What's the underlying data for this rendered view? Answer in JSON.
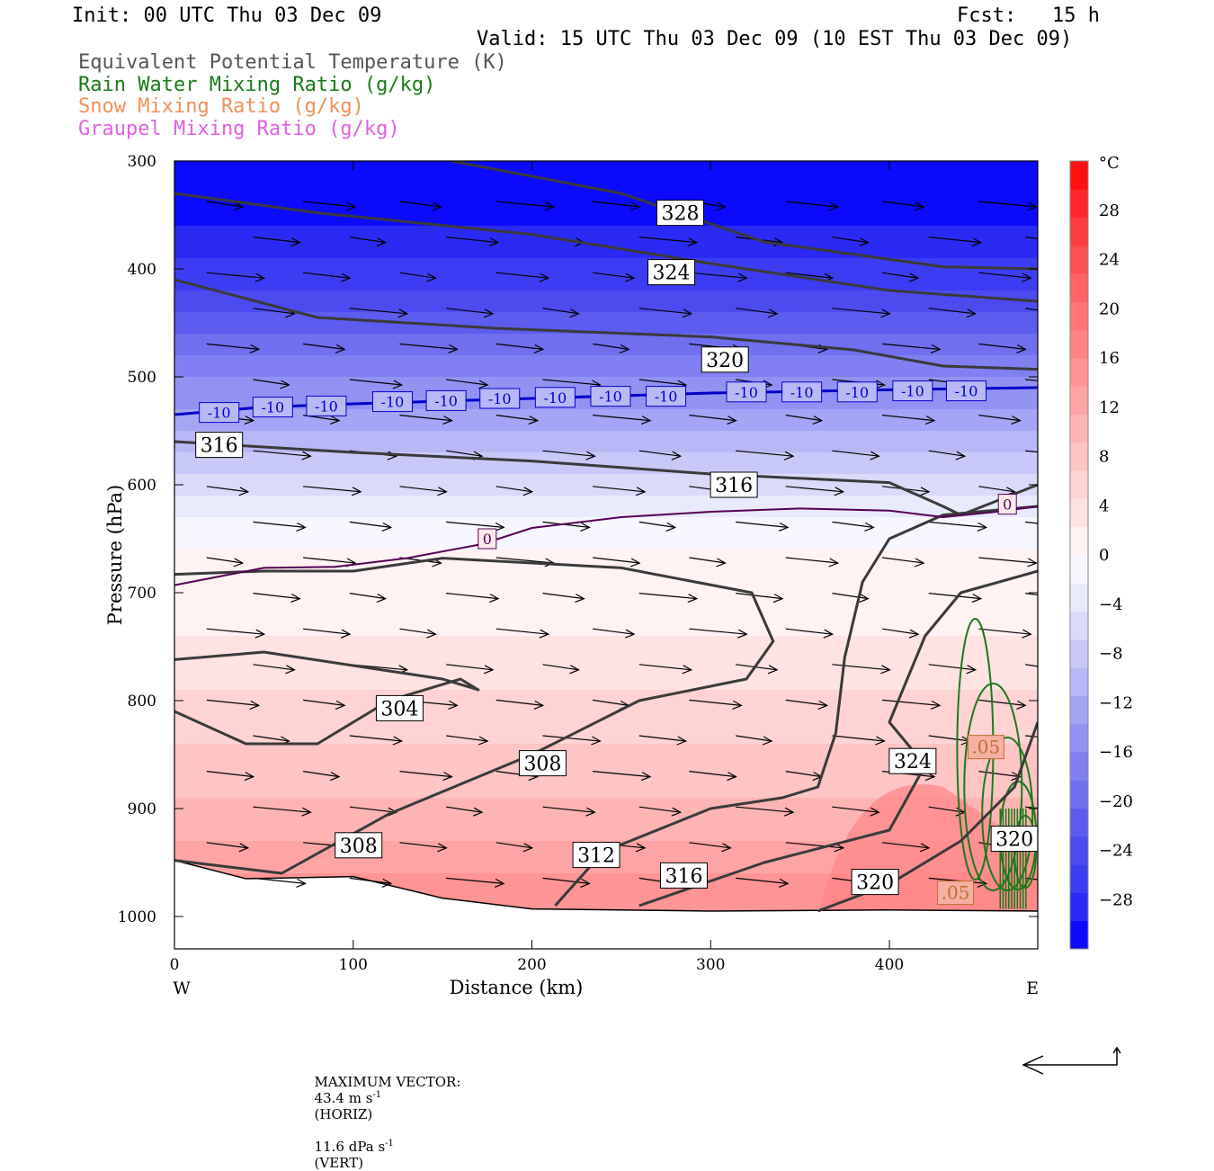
{
  "header": {
    "init": "Init: 00 UTC Thu 03 Dec 09",
    "fcst": "Fcst:   15 h",
    "valid": "Valid: 15 UTC Thu 03 Dec 09 (10 EST Thu 03 Dec 09)",
    "fields": [
      {
        "label": "Equivalent Potential Temperature (K)",
        "color": "#555555"
      },
      {
        "label": "Rain Water Mixing Ratio (g/kg)",
        "color": "#1a7a1a"
      },
      {
        "label": "Snow Mixing Ratio (g/kg)",
        "color": "#f0905a"
      },
      {
        "label": "Graupel Mixing Ratio (g/kg)",
        "color": "#e060e0"
      }
    ]
  },
  "footer": {
    "vector_label": "MAXIMUM VECTOR:",
    "horiz_value": "43.4 m s",
    "horiz_exp": "-1",
    "horiz_unit": "(HORIZ)",
    "vert_value": "11.6 dPa s",
    "vert_exp": "-1",
    "vert_unit": "(VERT)"
  },
  "chart_data": {
    "type": "cross-section",
    "xlabel": "Distance (km)",
    "ylabel": "Pressure (hPa)",
    "xlim": [
      0,
      483
    ],
    "ylim": [
      300,
      1030
    ],
    "y_scale": "linear (pressure, inverted)",
    "x_ticks": [
      0,
      100,
      200,
      300,
      400
    ],
    "y_ticks": [
      300,
      400,
      500,
      600,
      700,
      800,
      900,
      1000
    ],
    "x_end_labels": {
      "left": "W",
      "right": "E"
    },
    "colorbar": {
      "unit": "°C",
      "ticks": [
        28,
        24,
        20,
        16,
        12,
        8,
        4,
        0,
        -4,
        -8,
        -12,
        -16,
        -20,
        -24,
        -28
      ],
      "range": [
        -32,
        32
      ],
      "colors_cold_to_warm": [
        "#0a0aff",
        "#2a2af5",
        "#3c3cf2",
        "#4b4bf0",
        "#5c5cf0",
        "#6f6ff0",
        "#8080f2",
        "#9292f3",
        "#a5a5f5",
        "#b8b8f7",
        "#c9c9f9",
        "#dadafb",
        "#eaeafd",
        "#f6f6ff",
        "#fff2f2",
        "#ffe2e2",
        "#ffd3d3",
        "#ffc4c4",
        "#ffb4b4",
        "#ffa4a4",
        "#ff9494",
        "#ff8484",
        "#ff7474",
        "#ff6464",
        "#ff5050",
        "#ff3c3c",
        "#ff2828",
        "#ff1010"
      ]
    },
    "temperature_zones_C": [
      {
        "p_top": 300,
        "value": -32
      },
      {
        "p_top": 330,
        "value": -30
      },
      {
        "p_top": 360,
        "value": -28
      },
      {
        "p_top": 390,
        "value": -26
      },
      {
        "p_top": 420,
        "value": -24
      },
      {
        "p_top": 440,
        "value": -22
      },
      {
        "p_top": 460,
        "value": -20
      },
      {
        "p_top": 480,
        "value": -18
      },
      {
        "p_top": 500,
        "value": -16
      },
      {
        "p_top": 515,
        "value": -14
      },
      {
        "p_top": 530,
        "value": -12
      },
      {
        "p_top": 550,
        "value": -10
      },
      {
        "p_top": 570,
        "value": -8
      },
      {
        "p_top": 590,
        "value": -6
      },
      {
        "p_top": 610,
        "value": -4
      },
      {
        "p_top": 630,
        "value": -2
      },
      {
        "p_top": 660,
        "value": 0
      },
      {
        "p_top": 700,
        "value": 2
      },
      {
        "p_top": 740,
        "value": 4
      },
      {
        "p_top": 790,
        "value": 6
      },
      {
        "p_top": 840,
        "value": 8
      },
      {
        "p_top": 890,
        "value": 10
      },
      {
        "p_top": 930,
        "value": 12
      },
      {
        "p_top": 960,
        "value": 14
      }
    ],
    "isotherms": [
      {
        "value": -10,
        "color": "#0000cc",
        "points": [
          [
            0,
            535
          ],
          [
            50,
            528
          ],
          [
            100,
            525
          ],
          [
            200,
            520
          ],
          [
            300,
            515
          ],
          [
            400,
            512
          ],
          [
            483,
            510
          ]
        ],
        "labels": [
          [
            25,
            533
          ],
          [
            55,
            528
          ],
          [
            85,
            527
          ],
          [
            122,
            523
          ],
          [
            152,
            522
          ],
          [
            182,
            520
          ],
          [
            213,
            519
          ],
          [
            244,
            518
          ],
          [
            275,
            518
          ],
          [
            320,
            514
          ],
          [
            351,
            514
          ],
          [
            382,
            514
          ],
          [
            413,
            513
          ],
          [
            443,
            513
          ]
        ]
      },
      {
        "value": 0,
        "color": "#550055",
        "points": [
          [
            0,
            693
          ],
          [
            25,
            685
          ],
          [
            50,
            677
          ],
          [
            90,
            676
          ],
          [
            130,
            668
          ],
          [
            172,
            655
          ],
          [
            200,
            640
          ],
          [
            250,
            630
          ],
          [
            300,
            625
          ],
          [
            350,
            622
          ],
          [
            400,
            624
          ],
          [
            430,
            630
          ],
          [
            460,
            625
          ],
          [
            483,
            620
          ]
        ],
        "labels": [
          [
            175,
            650
          ],
          [
            466,
            618
          ]
        ]
      }
    ],
    "theta_e_K": [
      {
        "value": 328,
        "points": [
          [
            155,
            300
          ],
          [
            250,
            330
          ],
          [
            330,
            375
          ],
          [
            430,
            398
          ],
          [
            483,
            400
          ]
        ],
        "labels": [
          [
            283,
            348
          ]
        ]
      },
      {
        "value": 324,
        "points": [
          [
            0,
            410
          ],
          [
            80,
            445
          ],
          [
            180,
            455
          ],
          [
            300,
            463
          ],
          [
            380,
            475
          ],
          [
            430,
            490
          ],
          [
            483,
            493
          ]
        ],
        "labels": [
          [
            278,
            403
          ]
        ]
      },
      {
        "value": 320,
        "points": [
          [
            0,
            330
          ],
          [
            80,
            348
          ],
          [
            200,
            368
          ],
          [
            300,
            395
          ],
          [
            400,
            420
          ],
          [
            483,
            430
          ]
        ],
        "labels": [
          [
            308,
            484
          ],
          [
            392,
            968
          ],
          [
            470,
            928
          ]
        ]
      },
      {
        "value": 316,
        "points": [
          [
            0,
            560
          ],
          [
            100,
            570
          ],
          [
            200,
            578
          ],
          [
            300,
            590
          ],
          [
            400,
            598
          ],
          [
            430,
            620
          ],
          [
            440,
            628
          ],
          [
            483,
            600
          ]
        ],
        "labels": [
          [
            25,
            563
          ],
          [
            313,
            600
          ],
          [
            285,
            962
          ]
        ]
      },
      {
        "value": 304,
        "points": [
          [
            0,
            810
          ],
          [
            40,
            840
          ],
          [
            80,
            840
          ],
          [
            120,
            800
          ],
          [
            160,
            780
          ],
          [
            170,
            790
          ],
          [
            150,
            780
          ],
          [
            110,
            770
          ],
          [
            50,
            755
          ],
          [
            0,
            762
          ]
        ],
        "labels": [
          [
            126,
            807
          ]
        ]
      },
      {
        "value": 308,
        "points": [
          [
            0,
            948
          ],
          [
            60,
            960
          ],
          [
            120,
            905
          ],
          [
            200,
            850
          ],
          [
            260,
            800
          ],
          [
            320,
            780
          ],
          [
            335,
            745
          ],
          [
            323,
            700
          ],
          [
            250,
            677
          ],
          [
            150,
            668
          ],
          [
            100,
            680
          ],
          [
            50,
            680
          ],
          [
            0,
            683
          ]
        ],
        "labels": [
          [
            103,
            934
          ],
          [
            206,
            858
          ]
        ]
      },
      {
        "value": 312,
        "points": [
          [
            213,
            990
          ],
          [
            240,
            940
          ],
          [
            300,
            900
          ],
          [
            340,
            890
          ],
          [
            360,
            880
          ],
          [
            370,
            830
          ],
          [
            375,
            760
          ],
          [
            385,
            690
          ],
          [
            400,
            650
          ],
          [
            430,
            628
          ],
          [
            483,
            620
          ]
        ],
        "labels": [
          [
            236,
            943
          ]
        ]
      },
      {
        "value": 324,
        "points": [
          [
            360,
            995
          ],
          [
            400,
            970
          ],
          [
            440,
            930
          ],
          [
            470,
            880
          ],
          [
            483,
            820
          ]
        ],
        "labels": [
          [
            413,
            856
          ]
        ]
      },
      {
        "value": 316,
        "points": [
          [
            260,
            990
          ],
          [
            330,
            950
          ],
          [
            400,
            920
          ],
          [
            420,
            860
          ],
          [
            400,
            820
          ],
          [
            410,
            780
          ],
          [
            420,
            740
          ],
          [
            440,
            700
          ],
          [
            483,
            680
          ]
        ],
        "labels": []
      }
    ],
    "rain_water_g_per_kg": {
      "contour_labels": [
        ".05",
        ".05"
      ],
      "label_positions": [
        [
          454,
          843
        ],
        [
          437,
          978
        ]
      ]
    },
    "surface_pressure_hPa": [
      [
        0,
        948
      ],
      [
        40,
        965
      ],
      [
        100,
        963
      ],
      [
        150,
        983
      ],
      [
        200,
        993
      ],
      [
        300,
        995
      ],
      [
        400,
        994
      ],
      [
        483,
        995
      ]
    ]
  }
}
